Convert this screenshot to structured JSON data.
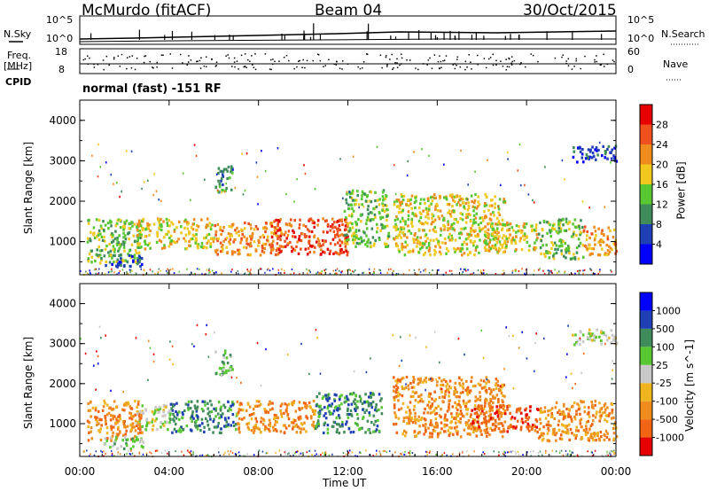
{
  "header": {
    "station": "McMurdo (fitACF)",
    "beam": "Beam 04",
    "date": "30/Oct/2015"
  },
  "summary": {
    "nsky_label": "N.Sky",
    "nsearch_label": "N.Search",
    "freq_label_1": "Freq.",
    "freq_label_2": "[MHz]",
    "nave_label": "Nave",
    "cpid_label": "CPID",
    "nsky_ticks": [
      "10^5",
      "10^0"
    ],
    "nsearch_ticks": [
      "10^5",
      "10^0"
    ],
    "freq_ticks": [
      "18",
      "8"
    ],
    "nave_ticks": [
      "60",
      "0"
    ],
    "mode_text": "normal (fast) -151 RF"
  },
  "colors": {
    "power": [
      "#0000ff",
      "#1f3fb4",
      "#3f8c5a",
      "#58c832",
      "#f0c81e",
      "#f08c1e",
      "#f0501e",
      "#e60000"
    ],
    "velocity": [
      "#e60000",
      "#f06414",
      "#f08c1e",
      "#f0b41e",
      "#c8c8c8",
      "#58c832",
      "#3f8c5a",
      "#1f3fb4",
      "#0000ff"
    ]
  },
  "chart_data": [
    {
      "type": "heatmap",
      "name": "Power",
      "colorbar_label": "Power [dB]",
      "colorbar_ticks": [
        "4",
        "8",
        "12",
        "16",
        "20",
        "24",
        "28"
      ],
      "ylabel": "Slant Range [km]",
      "yticks": [
        "1000",
        "2000",
        "3000",
        "4000"
      ],
      "ylim": [
        180,
        4500
      ],
      "xlabel": "Time UT",
      "xticks": [
        "00:00",
        "04:00",
        "08:00",
        "12:00",
        "16:00",
        "20:00",
        "00:00"
      ],
      "xlim_hours": [
        0,
        24
      ],
      "scatter_bands": [
        {
          "t0": 0.3,
          "t1": 2.8,
          "r0": 500,
          "r1": 1600,
          "level": 3
        },
        {
          "t0": 1.0,
          "t1": 2.8,
          "r0": 400,
          "r1": 700,
          "level": 1
        },
        {
          "t0": 2.5,
          "t1": 6.0,
          "r0": 850,
          "r1": 1600,
          "level": 4
        },
        {
          "t0": 6.0,
          "t1": 9.0,
          "r0": 700,
          "r1": 1500,
          "level": 5
        },
        {
          "t0": 8.5,
          "t1": 12.0,
          "r0": 700,
          "r1": 1600,
          "level": 6
        },
        {
          "t0": 11.8,
          "t1": 13.8,
          "r0": 900,
          "r1": 2300,
          "level": 3
        },
        {
          "t0": 14.0,
          "t1": 19.0,
          "r0": 700,
          "r1": 2200,
          "level": 4
        },
        {
          "t0": 17.5,
          "t1": 20.5,
          "r0": 800,
          "r1": 1500,
          "level": 4
        },
        {
          "t0": 20.5,
          "t1": 22.5,
          "r0": 600,
          "r1": 1600,
          "level": 3
        },
        {
          "t0": 22.5,
          "t1": 24.0,
          "r0": 700,
          "r1": 1400,
          "level": 5
        },
        {
          "t0": 6.0,
          "t1": 6.8,
          "r0": 2200,
          "r1": 2900,
          "level": 2
        },
        {
          "t0": 22.0,
          "t1": 24.0,
          "r0": 3000,
          "r1": 3400,
          "level": 1
        }
      ]
    },
    {
      "type": "heatmap",
      "name": "Velocity",
      "colorbar_label": "Velocity [m s^-1]",
      "colorbar_ticks": [
        "-1000",
        "-500",
        "-100",
        "-25",
        "25",
        "100",
        "500",
        "1000"
      ],
      "ylabel": "Slant Range [km]",
      "yticks": [
        "1000",
        "2000",
        "3000",
        "4000"
      ],
      "ylim": [
        180,
        4500
      ],
      "xlabel": "Time UT",
      "xticks": [
        "00:00",
        "04:00",
        "08:00",
        "12:00",
        "16:00",
        "20:00",
        "00:00"
      ],
      "xlim_hours": [
        0,
        24
      ],
      "scatter_bands": [
        {
          "t0": 0.3,
          "t1": 2.8,
          "r0": 600,
          "r1": 1600,
          "level": 2
        },
        {
          "t0": 1.0,
          "t1": 2.8,
          "r0": 400,
          "r1": 700,
          "level": 5
        },
        {
          "t0": 2.5,
          "t1": 4.0,
          "r0": 850,
          "r1": 1500,
          "level": 4
        },
        {
          "t0": 4.0,
          "t1": 7.0,
          "r0": 800,
          "r1": 1600,
          "level": 6
        },
        {
          "t0": 7.0,
          "t1": 10.5,
          "r0": 800,
          "r1": 1600,
          "level": 2
        },
        {
          "t0": 10.5,
          "t1": 13.5,
          "r0": 800,
          "r1": 1800,
          "level": 6
        },
        {
          "t0": 14.0,
          "t1": 19.0,
          "r0": 700,
          "r1": 2200,
          "level": 2
        },
        {
          "t0": 17.5,
          "t1": 20.5,
          "r0": 800,
          "r1": 1500,
          "level": 1
        },
        {
          "t0": 20.5,
          "t1": 24.0,
          "r0": 600,
          "r1": 1600,
          "level": 2
        },
        {
          "t0": 6.0,
          "t1": 6.8,
          "r0": 2200,
          "r1": 2900,
          "level": 5
        },
        {
          "t0": 22.0,
          "t1": 24.0,
          "r0": 3000,
          "r1": 3400,
          "level": 4
        }
      ]
    }
  ]
}
